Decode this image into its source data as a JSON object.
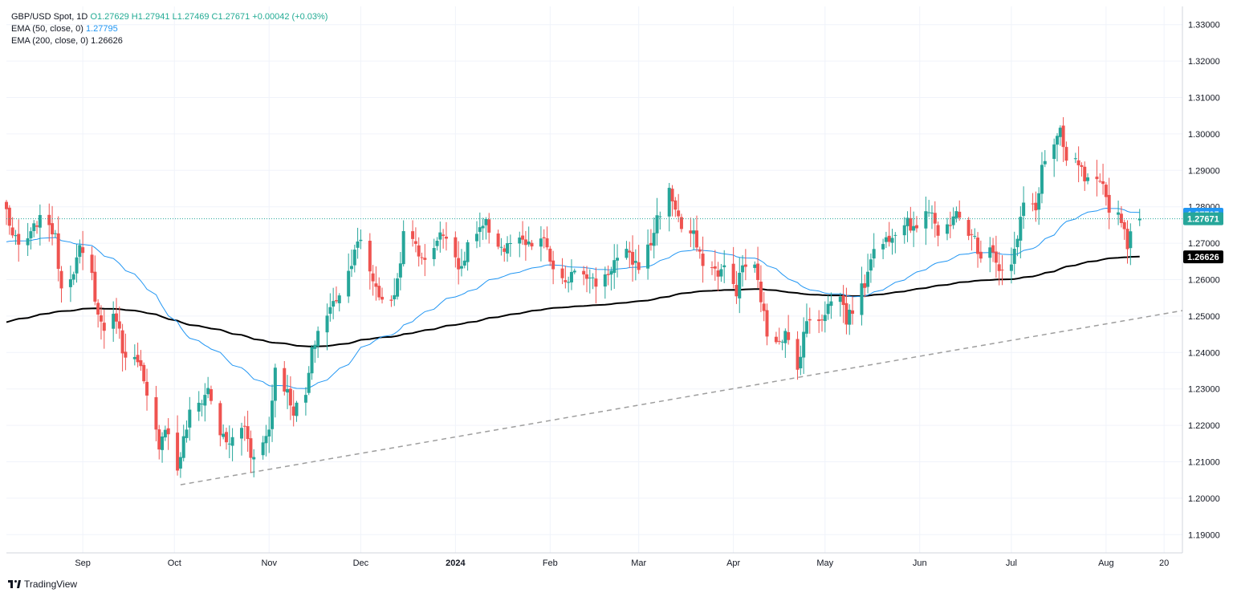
{
  "legend": {
    "symbol": "GBP/USD Spot, 1D",
    "ohlc": "O1.27629 H1.27941 L1.27469 C1.27671 +0.00042 (+0.03%)",
    "ema50_label": "EMA (50, close, 0)",
    "ema50_value": "1.27795",
    "ema200_label": "EMA (200, close, 0)",
    "ema200_value": "1.26626"
  },
  "brand": "TradingView",
  "colors": {
    "up": "#26a69a",
    "down": "#ef5350",
    "ema50": "#2196f3",
    "ema200": "#000000",
    "last": "#26a69a",
    "trend": "#9e9e9e"
  },
  "chart_data": {
    "type": "candlestick",
    "title": "GBP/USD Spot, 1D",
    "ylim": [
      1.185,
      1.335
    ],
    "y_ticks": [
      "1.19000",
      "1.20000",
      "1.21000",
      "1.22000",
      "1.23000",
      "1.24000",
      "1.25000",
      "1.26000",
      "1.27000",
      "1.28000",
      "1.29000",
      "1.30000",
      "1.31000",
      "1.32000",
      "1.33000"
    ],
    "x_range": [
      "2023-08-07",
      "2024-08-26"
    ],
    "x_ticks": [
      {
        "date": "2023-09-01",
        "label": "Sep"
      },
      {
        "date": "2023-10-01",
        "label": "Oct"
      },
      {
        "date": "2023-11-01",
        "label": "Nov"
      },
      {
        "date": "2023-12-01",
        "label": "Dec"
      },
      {
        "date": "2024-01-01",
        "label": "2024"
      },
      {
        "date": "2024-02-01",
        "label": "Feb"
      },
      {
        "date": "2024-03-01",
        "label": "Mar"
      },
      {
        "date": "2024-04-01",
        "label": "Apr"
      },
      {
        "date": "2024-05-01",
        "label": "May"
      },
      {
        "date": "2024-06-01",
        "label": "Jun"
      },
      {
        "date": "2024-07-01",
        "label": "Jul"
      },
      {
        "date": "2024-08-01",
        "label": "Aug"
      },
      {
        "date": "2024-08-20",
        "label": "20"
      }
    ],
    "closes": [
      [
        "2023-08-07",
        1.279
      ],
      [
        "2023-08-09",
        1.272
      ],
      [
        "2023-08-11",
        1.269
      ],
      [
        "2023-08-15",
        1.272
      ],
      [
        "2023-08-17",
        1.276
      ],
      [
        "2023-08-21",
        1.276
      ],
      [
        "2023-08-23",
        1.271
      ],
      [
        "2023-08-25",
        1.258
      ],
      [
        "2023-08-29",
        1.263
      ],
      [
        "2023-08-31",
        1.268
      ],
      [
        "2023-09-04",
        1.261
      ],
      [
        "2023-09-06",
        1.25
      ],
      [
        "2023-09-08",
        1.247
      ],
      [
        "2023-09-12",
        1.25
      ],
      [
        "2023-09-14",
        1.241
      ],
      [
        "2023-09-18",
        1.238
      ],
      [
        "2023-09-20",
        1.235
      ],
      [
        "2023-09-22",
        1.227
      ],
      [
        "2023-09-26",
        1.215
      ],
      [
        "2023-09-28",
        1.22
      ],
      [
        "2023-10-02",
        1.208
      ],
      [
        "2023-10-04",
        1.216
      ],
      [
        "2023-10-06",
        1.223
      ],
      [
        "2023-10-10",
        1.227
      ],
      [
        "2023-10-12",
        1.23
      ],
      [
        "2023-10-16",
        1.218
      ],
      [
        "2023-10-18",
        1.215
      ],
      [
        "2023-10-20",
        1.216
      ],
      [
        "2023-10-24",
        1.22
      ],
      [
        "2023-10-26",
        1.212
      ],
      [
        "2023-10-30",
        1.215
      ],
      [
        "2023-11-01",
        1.219
      ],
      [
        "2023-11-03",
        1.236
      ],
      [
        "2023-11-07",
        1.229
      ],
      [
        "2023-11-09",
        1.224
      ],
      [
        "2023-11-13",
        1.228
      ],
      [
        "2023-11-15",
        1.24
      ],
      [
        "2023-11-17",
        1.246
      ],
      [
        "2023-11-21",
        1.252
      ],
      [
        "2023-11-23",
        1.255
      ],
      [
        "2023-11-27",
        1.262
      ],
      [
        "2023-11-29",
        1.269
      ],
      [
        "2023-12-01",
        1.27
      ],
      [
        "2023-12-05",
        1.26
      ],
      [
        "2023-12-07",
        1.256
      ],
      [
        "2023-12-11",
        1.253
      ],
      [
        "2023-12-13",
        1.26
      ],
      [
        "2023-12-15",
        1.272
      ],
      [
        "2023-12-19",
        1.27
      ],
      [
        "2023-12-21",
        1.265
      ],
      [
        "2023-12-27",
        1.272
      ],
      [
        "2023-12-29",
        1.273
      ],
      [
        "2024-01-03",
        1.262
      ],
      [
        "2024-01-05",
        1.27
      ],
      [
        "2024-01-09",
        1.273
      ],
      [
        "2024-01-11",
        1.275
      ],
      [
        "2024-01-15",
        1.27
      ],
      [
        "2024-01-17",
        1.268
      ],
      [
        "2024-01-19",
        1.27
      ],
      [
        "2024-01-23",
        1.27
      ],
      [
        "2024-01-25",
        1.269
      ],
      [
        "2024-01-29",
        1.271
      ],
      [
        "2024-01-31",
        1.269
      ],
      [
        "2024-02-02",
        1.262
      ],
      [
        "2024-02-06",
        1.258
      ],
      [
        "2024-02-08",
        1.263
      ],
      [
        "2024-02-12",
        1.263
      ],
      [
        "2024-02-14",
        1.26
      ],
      [
        "2024-02-16",
        1.259
      ],
      [
        "2024-02-20",
        1.262
      ],
      [
        "2024-02-22",
        1.265
      ],
      [
        "2024-02-26",
        1.267
      ],
      [
        "2024-02-28",
        1.265
      ],
      [
        "2024-03-01",
        1.264
      ],
      [
        "2024-03-05",
        1.27
      ],
      [
        "2024-03-07",
        1.277
      ],
      [
        "2024-03-11",
        1.284
      ],
      [
        "2024-03-13",
        1.28
      ],
      [
        "2024-03-15",
        1.274
      ],
      [
        "2024-03-19",
        1.272
      ],
      [
        "2024-03-21",
        1.266
      ],
      [
        "2024-03-25",
        1.263
      ],
      [
        "2024-03-27",
        1.262
      ],
      [
        "2024-03-29",
        1.263
      ],
      [
        "2024-04-02",
        1.257
      ],
      [
        "2024-04-04",
        1.264
      ],
      [
        "2024-04-08",
        1.263
      ],
      [
        "2024-04-10",
        1.255
      ],
      [
        "2024-04-12",
        1.245
      ],
      [
        "2024-04-16",
        1.244
      ],
      [
        "2024-04-18",
        1.245
      ],
      [
        "2024-04-22",
        1.235
      ],
      [
        "2024-04-24",
        1.246
      ],
      [
        "2024-04-26",
        1.249
      ],
      [
        "2024-04-30",
        1.25
      ],
      [
        "2024-05-02",
        1.253
      ],
      [
        "2024-05-06",
        1.256
      ],
      [
        "2024-05-08",
        1.249
      ],
      [
        "2024-05-10",
        1.252
      ],
      [
        "2024-05-14",
        1.259
      ],
      [
        "2024-05-16",
        1.267
      ],
      [
        "2024-05-20",
        1.27
      ],
      [
        "2024-05-22",
        1.272
      ],
      [
        "2024-05-24",
        1.274
      ],
      [
        "2024-05-28",
        1.277
      ],
      [
        "2024-05-30",
        1.273
      ],
      [
        "2024-06-03",
        1.28
      ],
      [
        "2024-06-05",
        1.279
      ],
      [
        "2024-06-07",
        1.272
      ],
      [
        "2024-06-11",
        1.274
      ],
      [
        "2024-06-13",
        1.28
      ],
      [
        "2024-06-17",
        1.271
      ],
      [
        "2024-06-19",
        1.272
      ],
      [
        "2024-06-21",
        1.265
      ],
      [
        "2024-06-25",
        1.269
      ],
      [
        "2024-06-27",
        1.263
      ],
      [
        "2024-07-01",
        1.265
      ],
      [
        "2024-07-03",
        1.271
      ],
      [
        "2024-07-05",
        1.281
      ],
      [
        "2024-07-09",
        1.279
      ],
      [
        "2024-07-11",
        1.291
      ],
      [
        "2024-07-15",
        1.297
      ],
      [
        "2024-07-17",
        1.3
      ],
      [
        "2024-07-19",
        1.292
      ],
      [
        "2024-07-23",
        1.292
      ],
      [
        "2024-07-25",
        1.287
      ],
      [
        "2024-07-29",
        1.286
      ],
      [
        "2024-07-31",
        1.285
      ],
      [
        "2024-08-02",
        1.28
      ],
      [
        "2024-08-06",
        1.277
      ],
      [
        "2024-08-08",
        1.27
      ],
      [
        "2024-08-12",
        1.2767
      ]
    ],
    "last_price": "1.27671",
    "series": [
      {
        "name": "EMA (50, close, 0)",
        "last": "1.27795"
      },
      {
        "name": "EMA (200, close, 0)",
        "last": "1.26626"
      }
    ],
    "trend_line": {
      "start": [
        "2023-10-03",
        1.2037
      ],
      "end": [
        "2024-08-26",
        1.2515
      ],
      "style": "dashed"
    }
  }
}
